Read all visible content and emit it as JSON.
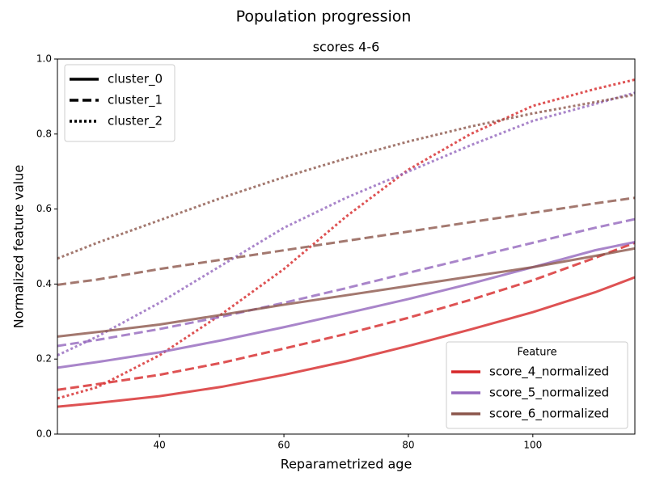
{
  "chart_data": {
    "type": "line",
    "title": "Population progression",
    "subtitle": "scores 4-6",
    "xlabel": "Reparametrized age",
    "ylabel": "Normalized feature value",
    "x": [
      23.6,
      30,
      40,
      50,
      60,
      70,
      80,
      90,
      100,
      110,
      116.4
    ],
    "xlim": [
      23.6,
      116.4
    ],
    "xticks": [
      40,
      60,
      80,
      100
    ],
    "ylim": [
      0,
      1
    ],
    "yticks": [
      {
        "value": 0,
        "label": "0.0"
      },
      {
        "value": 0.2,
        "label": "0.2"
      },
      {
        "value": 0.4,
        "label": "0.4"
      },
      {
        "value": 0.6,
        "label": "0.6"
      },
      {
        "value": 0.8,
        "label": "0.8"
      },
      {
        "value": 1,
        "label": "1.0"
      }
    ],
    "clusters": [
      {
        "name": "cluster_0",
        "linestyle": "solid"
      },
      {
        "name": "cluster_1",
        "linestyle": "dashed"
      },
      {
        "name": "cluster_2",
        "linestyle": "dotted"
      }
    ],
    "cluster_legend_loc": "upper left",
    "features": [
      {
        "name": "score_4_normalized",
        "color": "#d62728"
      },
      {
        "name": "score_5_normalized",
        "color": "#9467bd"
      },
      {
        "name": "score_6_normalized",
        "color": "#8c564b"
      }
    ],
    "feature_legend_title": "Feature",
    "feature_legend_loc": "lower right",
    "series": [
      {
        "feature": "score_4_normalized",
        "cluster": "cluster_0",
        "values": [
          0.073,
          0.083,
          0.101,
          0.126,
          0.158,
          0.194,
          0.235,
          0.279,
          0.325,
          0.378,
          0.418
        ]
      },
      {
        "feature": "score_4_normalized",
        "cluster": "cluster_1",
        "values": [
          0.118,
          0.133,
          0.158,
          0.19,
          0.228,
          0.267,
          0.31,
          0.358,
          0.41,
          0.47,
          0.51
        ]
      },
      {
        "feature": "score_4_normalized",
        "cluster": "cluster_2",
        "values": [
          0.095,
          0.125,
          0.21,
          0.32,
          0.44,
          0.58,
          0.705,
          0.8,
          0.875,
          0.92,
          0.945
        ]
      },
      {
        "feature": "score_5_normalized",
        "cluster": "cluster_0",
        "values": [
          0.177,
          0.192,
          0.218,
          0.25,
          0.285,
          0.322,
          0.36,
          0.401,
          0.445,
          0.49,
          0.512
        ]
      },
      {
        "feature": "score_5_normalized",
        "cluster": "cluster_1",
        "values": [
          0.235,
          0.251,
          0.28,
          0.313,
          0.35,
          0.389,
          0.43,
          0.47,
          0.51,
          0.55,
          0.573
        ]
      },
      {
        "feature": "score_5_normalized",
        "cluster": "cluster_2",
        "values": [
          0.21,
          0.26,
          0.35,
          0.45,
          0.55,
          0.63,
          0.7,
          0.77,
          0.835,
          0.88,
          0.91
        ]
      },
      {
        "feature": "score_6_normalized",
        "cluster": "cluster_0",
        "values": [
          0.26,
          0.272,
          0.292,
          0.318,
          0.345,
          0.37,
          0.395,
          0.42,
          0.445,
          0.475,
          0.495
        ]
      },
      {
        "feature": "score_6_normalized",
        "cluster": "cluster_1",
        "values": [
          0.398,
          0.412,
          0.44,
          0.465,
          0.49,
          0.515,
          0.54,
          0.565,
          0.59,
          0.615,
          0.63
        ]
      },
      {
        "feature": "score_6_normalized",
        "cluster": "cluster_2",
        "values": [
          0.468,
          0.51,
          0.57,
          0.63,
          0.685,
          0.735,
          0.78,
          0.82,
          0.855,
          0.885,
          0.905
        ]
      }
    ]
  }
}
